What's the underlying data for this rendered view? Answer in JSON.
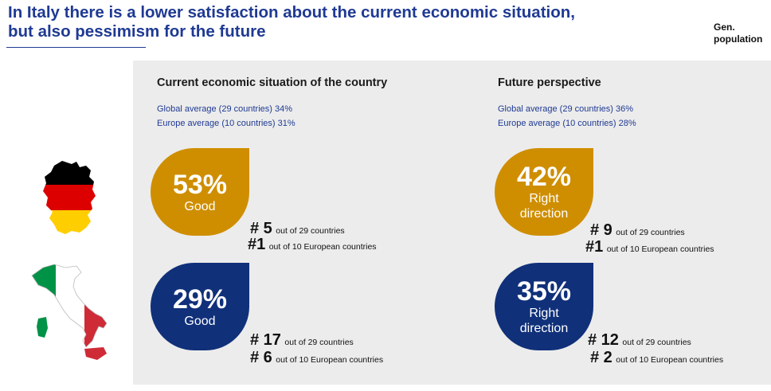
{
  "header": {
    "title_line1": "In Italy there is a lower satisfaction about the current economic situation,",
    "title_line2": "but also pessimism for the future",
    "badge_line1": "Gen.",
    "badge_line2": "population"
  },
  "flags": {
    "germany_colors": [
      "#000000",
      "#dd0000",
      "#ffce00"
    ],
    "italy_colors": [
      "#009246",
      "#ffffff",
      "#ce2b37"
    ]
  },
  "columns": [
    {
      "title": "Current economic situation of the country",
      "global_avg": "Global average (29 countries) 34%",
      "europe_avg": "Europe average (10 countries) 31%",
      "germany": {
        "percent": "53%",
        "label": "Good",
        "label2": "",
        "rank_global_num": "# 5",
        "rank_global_text": "out of 29 countries",
        "rank_europe_num": "#1",
        "rank_europe_text": "out of 10 European countries"
      },
      "italy": {
        "percent": "29%",
        "label": "Good",
        "label2": "",
        "rank_global_num": "# 17",
        "rank_global_text": "out of 29 countries",
        "rank_europe_num": "# 6",
        "rank_europe_text": "out of 10 European countries"
      }
    },
    {
      "title": "Future perspective",
      "global_avg": "Global average (29 countries) 36%",
      "europe_avg": "Europe average (10 countries) 28%",
      "germany": {
        "percent": "42%",
        "label": "Right",
        "label2": "direction",
        "rank_global_num": "# 9",
        "rank_global_text": "out of 29 countries",
        "rank_europe_num": "#1",
        "rank_europe_text": "out of 10 European countries"
      },
      "italy": {
        "percent": "35%",
        "label": "Right",
        "label2": "direction",
        "rank_global_num": "# 12",
        "rank_global_text": "out of 29 countries",
        "rank_europe_num": "# 2",
        "rank_europe_text": "out of 10 European countries"
      }
    }
  ],
  "colors": {
    "gold": "#cf8e00",
    "navy": "#10307a",
    "title": "#1f3a93"
  }
}
